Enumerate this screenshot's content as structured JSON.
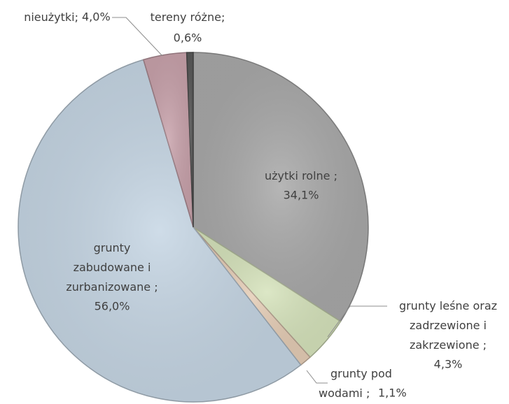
{
  "chart_data": {
    "type": "pie",
    "categories": [
      "użytki rolne ;",
      "grunty leśne oraz zadrzewione i zakrzewione ;",
      "grunty pod wodami ;",
      "grunty zabudowane i zurbanizowane ;",
      "nieużytki;",
      "tereny różne;"
    ],
    "values": [
      34.1,
      4.3,
      1.1,
      56.0,
      4.0,
      0.6
    ],
    "value_labels": [
      "34,1%",
      "4,3%",
      "1,1%",
      "56,0%",
      "4,0%",
      "0,6%"
    ],
    "colors": [
      "#a9a9a9",
      "#d6e3bc",
      "#e5cdb6",
      "#c6d6e4",
      "#c9a3ac",
      "#595959"
    ]
  }
}
